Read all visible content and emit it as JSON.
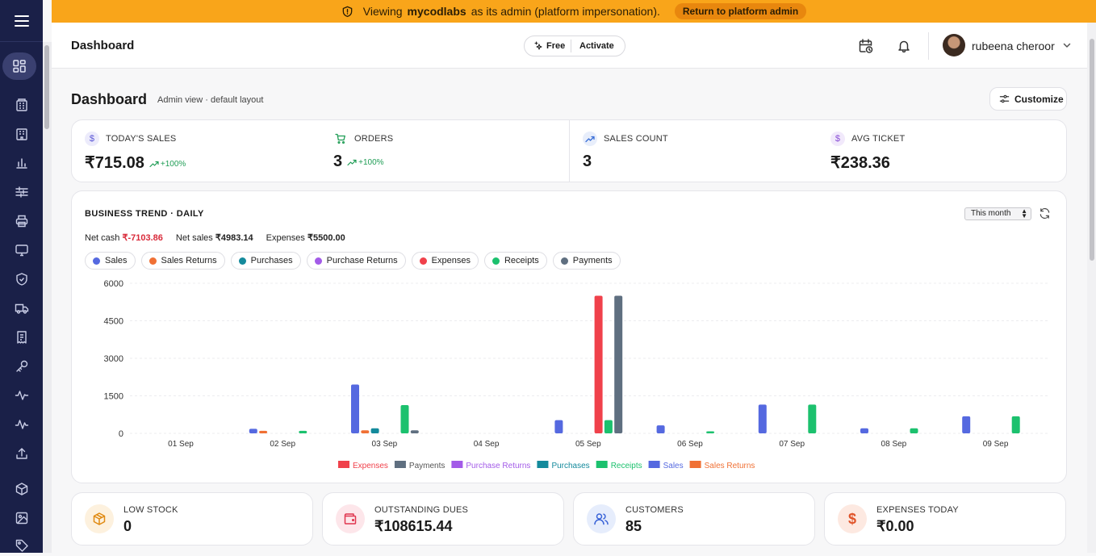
{
  "banner": {
    "prefix": "Viewing",
    "org": "mycodlabs",
    "suffix": "as its admin (platform impersonation).",
    "return_label": "Return to platform admin"
  },
  "topbar": {
    "title": "Dashboard",
    "plan_label": "Free",
    "activate_label": "Activate",
    "user_name": "rubeena cheroor"
  },
  "page": {
    "title": "Dashboard",
    "subtitle": "Admin view · default layout",
    "customize_label": "Customize"
  },
  "kpis": [
    {
      "label": "TODAY'S SALES",
      "value": "₹715.08",
      "trend": "+100%",
      "icon": "dollar-icon",
      "color": "#5b57d6"
    },
    {
      "label": "ORDERS",
      "value": "3",
      "trend": "+100%",
      "icon": "cart-icon",
      "color": "#1f9d55"
    },
    {
      "label": "SALES COUNT",
      "value": "3",
      "trend": "",
      "icon": "trend-icon",
      "color": "#3b6fd6"
    },
    {
      "label": "AVG TICKET",
      "value": "₹238.36",
      "trend": "",
      "icon": "dollar-icon",
      "color": "#8a4fd6"
    }
  ],
  "trend": {
    "title": "BUSINESS TREND · DAILY",
    "range": "This month",
    "net_cash_label": "Net cash",
    "net_cash_value": "₹-7103.86",
    "net_sales_label": "Net sales",
    "net_sales_value": "₹4983.14",
    "expenses_label": "Expenses",
    "expenses_value": "₹5500.00",
    "chips": [
      {
        "label": "Sales",
        "color": "#5569e0"
      },
      {
        "label": "Sales Returns",
        "color": "#f07034"
      },
      {
        "label": "Purchases",
        "color": "#148a9c"
      },
      {
        "label": "Purchase Returns",
        "color": "#a35be8"
      },
      {
        "label": "Expenses",
        "color": "#f0414b"
      },
      {
        "label": "Receipts",
        "color": "#1cc16e"
      },
      {
        "label": "Payments",
        "color": "#5f6f80"
      }
    ]
  },
  "chart_data": {
    "type": "bar",
    "categories": [
      "01 Sep",
      "02 Sep",
      "03 Sep",
      "04 Sep",
      "05 Sep",
      "06 Sep",
      "07 Sep",
      "08 Sep",
      "09 Sep"
    ],
    "ylim": [
      0,
      6000
    ],
    "yticks": [
      "6000",
      "4500",
      "3000",
      "1500",
      "0"
    ],
    "grid": true,
    "legend": "bottom",
    "series": [
      {
        "name": "Sales",
        "color": "#5569e0",
        "values": [
          0,
          180,
          1950,
          0,
          530,
          320,
          1150,
          200,
          680
        ]
      },
      {
        "name": "Sales Returns",
        "color": "#f07034",
        "values": [
          0,
          100,
          120,
          0,
          0,
          0,
          0,
          0,
          0
        ]
      },
      {
        "name": "Purchases",
        "color": "#148a9c",
        "values": [
          0,
          0,
          200,
          0,
          0,
          0,
          0,
          0,
          0
        ]
      },
      {
        "name": "Purchase Returns",
        "color": "#a35be8",
        "values": [
          0,
          0,
          0,
          0,
          0,
          0,
          0,
          0,
          0
        ]
      },
      {
        "name": "Expenses",
        "color": "#f0414b",
        "values": [
          0,
          0,
          0,
          0,
          5500,
          0,
          0,
          0,
          0
        ]
      },
      {
        "name": "Receipts",
        "color": "#1cc16e",
        "values": [
          0,
          100,
          1130,
          0,
          530,
          80,
          1150,
          200,
          680
        ]
      },
      {
        "name": "Payments",
        "color": "#5f6f80",
        "values": [
          0,
          0,
          120,
          0,
          5500,
          0,
          0,
          0,
          0
        ]
      }
    ],
    "legend_items": [
      {
        "name": "Expenses",
        "color": "#f0414b"
      },
      {
        "name": "Payments",
        "color": "#5f6f80"
      },
      {
        "name": "Purchase Returns",
        "color": "#a35be8"
      },
      {
        "name": "Purchases",
        "color": "#148a9c"
      },
      {
        "name": "Receipts",
        "color": "#1cc16e"
      },
      {
        "name": "Sales",
        "color": "#5569e0"
      },
      {
        "name": "Sales Returns",
        "color": "#f07034"
      }
    ]
  },
  "bottom_cards": [
    {
      "label": "LOW STOCK",
      "value": "0",
      "icon": "box-icon",
      "color": "#e08a12",
      "bg": "#fdf1de"
    },
    {
      "label": "OUTSTANDING DUES",
      "value": "₹108615.44",
      "icon": "wallet-icon",
      "color": "#e0354e",
      "bg": "#fde6ea"
    },
    {
      "label": "CUSTOMERS",
      "value": "85",
      "icon": "users-icon",
      "color": "#3a64d8",
      "bg": "#e6edfc"
    },
    {
      "label": "EXPENSES TODAY",
      "value": "₹0.00",
      "icon": "dollar-icon",
      "color": "#e0542a",
      "bg": "#fde9e1"
    }
  ]
}
